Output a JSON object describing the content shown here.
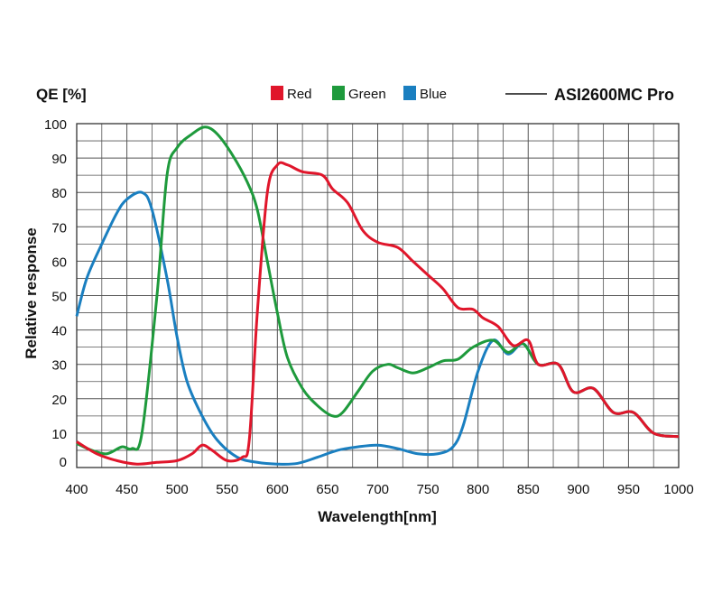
{
  "chart_data": {
    "type": "line",
    "title": "ASI2600MC Pro",
    "xlabel": "Wavelength[nm]",
    "ylabel": "Relative response",
    "y_unit_label": "QE [%]",
    "xlim": [
      400,
      1000
    ],
    "ylim": [
      0,
      100
    ],
    "xticks": [
      400,
      450,
      500,
      550,
      600,
      650,
      700,
      750,
      800,
      850,
      900,
      950,
      1000
    ],
    "yticks": [
      0,
      10,
      20,
      30,
      40,
      50,
      60,
      70,
      80,
      90,
      100
    ],
    "grid": true,
    "legend": {
      "placement": "top",
      "entries": [
        "Red",
        "Green",
        "Blue"
      ],
      "line_entry": "ASI2600MC Pro"
    },
    "series": [
      {
        "name": "Red",
        "color": "#e0162b",
        "x": [
          400,
          420,
          440,
          460,
          480,
          500,
          515,
          525,
          535,
          550,
          565,
          572,
          580,
          590,
          600,
          610,
          625,
          645,
          655,
          670,
          685,
          700,
          720,
          735,
          750,
          765,
          780,
          795,
          805,
          820,
          835,
          850,
          860,
          880,
          895,
          915,
          935,
          955,
          975,
          1000
        ],
        "y": [
          7.5,
          4,
          2,
          1,
          1.5,
          2,
          4,
          6.5,
          5,
          2,
          3,
          8,
          45,
          80,
          88,
          88,
          86,
          85,
          81,
          77,
          69,
          65.5,
          64,
          60,
          56,
          52,
          46.5,
          46,
          43.5,
          41,
          35.5,
          37,
          30,
          30,
          22,
          23,
          16,
          16,
          10,
          9
        ]
      },
      {
        "name": "Green",
        "color": "#1e9a3c",
        "x": [
          400,
          415,
          430,
          445,
          455,
          465,
          480,
          490,
          500,
          515,
          528,
          540,
          555,
          570,
          580,
          590,
          600,
          610,
          625,
          640,
          655,
          665,
          680,
          695,
          710,
          720,
          735,
          750,
          765,
          780,
          795,
          815,
          830,
          845,
          860,
          880,
          895,
          915,
          935,
          955,
          975,
          1000
        ],
        "y": [
          7,
          5,
          4,
          6,
          5.5,
          10,
          50,
          85,
          93,
          97,
          99,
          97,
          91,
          83,
          75,
          60,
          45,
          32,
          23,
          18,
          15,
          16,
          22,
          28,
          30,
          29,
          27.5,
          29,
          31,
          31.5,
          35,
          37,
          33.5,
          36,
          30,
          30,
          22,
          23,
          16,
          16,
          10,
          9
        ]
      },
      {
        "name": "Blue",
        "color": "#1a7fc0",
        "x": [
          400,
          410,
          425,
          440,
          450,
          465,
          475,
          490,
          500,
          510,
          525,
          540,
          560,
          580,
          600,
          620,
          640,
          660,
          680,
          700,
          720,
          740,
          760,
          775,
          785,
          800,
          815,
          830,
          845,
          860,
          880,
          895,
          915,
          935,
          955,
          975,
          1000
        ],
        "y": [
          44,
          55,
          65,
          74,
          78,
          80,
          75,
          55,
          38,
          25,
          15,
          8,
          3,
          1.5,
          1,
          1.2,
          3,
          5,
          6,
          6.5,
          5.5,
          4,
          4,
          6,
          12,
          28,
          37,
          33,
          36,
          30,
          30,
          22,
          23,
          16,
          16,
          10,
          9
        ]
      }
    ]
  }
}
